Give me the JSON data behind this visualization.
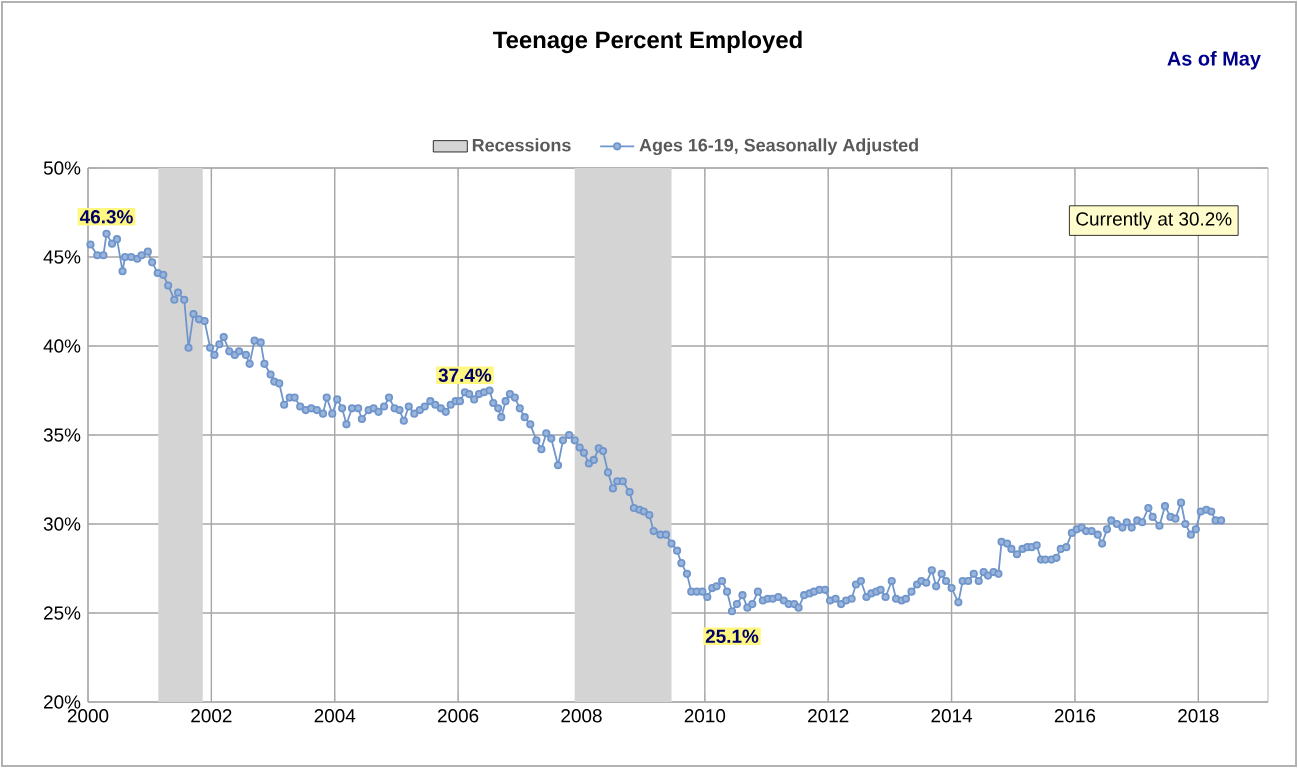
{
  "chart_data": {
    "type": "line",
    "title": "Teenage Percent Employed",
    "subtitle": "As of May",
    "x": [
      2000.04,
      2000.15,
      2000.25,
      2000.3,
      2000.39,
      2000.47,
      2000.56,
      2000.6,
      2000.7,
      2000.8,
      2000.87,
      2000.97,
      2001.04,
      2001.13,
      2001.22,
      2001.3,
      2001.4,
      2001.46,
      2001.56,
      2001.63,
      2001.71,
      2001.8,
      2001.89,
      2001.98,
      2002.05,
      2002.13,
      2002.2,
      2002.29,
      2002.38,
      2002.45,
      2002.56,
      2002.62,
      2002.7,
      2002.8,
      2002.86,
      2002.96,
      2003.02,
      2003.1,
      2003.18,
      2003.27,
      2003.35,
      2003.44,
      2003.53,
      2003.62,
      2003.71,
      2003.81,
      2003.87,
      2003.96,
      2004.04,
      2004.12,
      2004.19,
      2004.28,
      2004.38,
      2004.44,
      2004.55,
      2004.63,
      2004.71,
      2004.8,
      2004.88,
      2004.97,
      2005.05,
      2005.12,
      2005.2,
      2005.29,
      2005.38,
      2005.46,
      2005.55,
      2005.63,
      2005.72,
      2005.8,
      2005.88,
      2005.96,
      2006.03,
      2006.11,
      2006.18,
      2006.26,
      2006.34,
      2006.42,
      2006.51,
      2006.57,
      2006.65,
      2006.7,
      2006.77,
      2006.84,
      2006.92,
      2007.0,
      2007.08,
      2007.17,
      2007.27,
      2007.35,
      2007.43,
      2007.51,
      2007.62,
      2007.7,
      2007.8,
      2007.89,
      2007.97,
      2008.04,
      2008.12,
      2008.2,
      2008.28,
      2008.35,
      2008.43,
      2008.51,
      2008.58,
      2008.67,
      2008.78,
      2008.85,
      2008.94,
      2009.01,
      2009.1,
      2009.17,
      2009.28,
      2009.37,
      2009.46,
      2009.55,
      2009.62,
      2009.71,
      2009.78,
      2009.87,
      2009.96,
      2010.04,
      2010.12,
      2010.19,
      2010.28,
      2010.36,
      2010.44,
      2010.52,
      2010.61,
      2010.69,
      2010.77,
      2010.86,
      2010.94,
      2011.02,
      2011.1,
      2011.19,
      2011.28,
      2011.36,
      2011.45,
      2011.52,
      2011.61,
      2011.7,
      2011.77,
      2011.86,
      2011.95,
      2012.03,
      2012.12,
      2012.21,
      2012.29,
      2012.38,
      2012.45,
      2012.53,
      2012.62,
      2012.7,
      2012.78,
      2012.85,
      2012.93,
      2013.03,
      2013.1,
      2013.19,
      2013.26,
      2013.35,
      2013.44,
      2013.51,
      2013.59,
      2013.68,
      2013.75,
      2013.84,
      2013.91,
      2014.0,
      2014.11,
      2014.18,
      2014.27,
      2014.36,
      2014.44,
      2014.52,
      2014.59,
      2014.68,
      2014.76,
      2014.81,
      2014.9,
      2014.97,
      2015.06,
      2015.15,
      2015.23,
      2015.3,
      2015.38,
      2015.45,
      2015.52,
      2015.62,
      2015.7,
      2015.77,
      2015.86,
      2015.95,
      2016.03,
      2016.11,
      2016.18,
      2016.27,
      2016.37,
      2016.44,
      2016.52,
      2016.59,
      2016.68,
      2016.77,
      2016.84,
      2016.92,
      2017.01,
      2017.09,
      2017.19,
      2017.26,
      2017.37,
      2017.46,
      2017.55,
      2017.63,
      2017.72,
      2017.79,
      2017.88,
      2017.96,
      2018.04,
      2018.13,
      2018.21,
      2018.28,
      2018.37
    ],
    "series": [
      {
        "name": "Ages 16-19, Seasonally Adjusted",
        "color": "#6f95cb",
        "values": [
          45.7,
          45.1,
          45.1,
          46.3,
          45.75,
          46.0,
          44.2,
          45.0,
          45.0,
          44.9,
          45.1,
          45.3,
          44.7,
          44.1,
          44.0,
          43.4,
          42.6,
          43.0,
          42.6,
          39.9,
          41.8,
          41.5,
          41.4,
          39.9,
          39.5,
          40.1,
          40.5,
          39.7,
          39.5,
          39.7,
          39.5,
          39.0,
          40.3,
          40.2,
          39.0,
          38.4,
          38.0,
          37.9,
          36.7,
          37.1,
          37.1,
          36.6,
          36.4,
          36.5,
          36.4,
          36.2,
          37.1,
          36.2,
          37.0,
          36.5,
          35.6,
          36.5,
          36.5,
          35.9,
          36.4,
          36.5,
          36.3,
          36.6,
          37.1,
          36.5,
          36.4,
          35.8,
          36.6,
          36.2,
          36.4,
          36.6,
          36.9,
          36.7,
          36.5,
          36.3,
          36.7,
          36.9,
          36.9,
          37.4,
          37.3,
          37.0,
          37.3,
          37.4,
          37.5,
          36.8,
          36.5,
          36.0,
          36.9,
          37.3,
          37.1,
          36.5,
          36.0,
          35.6,
          34.7,
          34.2,
          35.1,
          34.8,
          33.3,
          34.7,
          35.0,
          34.7,
          34.3,
          34.0,
          33.4,
          33.6,
          34.25,
          34.1,
          32.9,
          32.0,
          32.4,
          32.4,
          31.8,
          30.9,
          30.8,
          30.7,
          30.5,
          29.6,
          29.4,
          29.4,
          28.9,
          28.5,
          27.8,
          27.2,
          26.2,
          26.2,
          26.2,
          25.9,
          26.4,
          26.5,
          26.8,
          26.2,
          25.1,
          25.5,
          26.0,
          25.3,
          25.5,
          26.2,
          25.7,
          25.8,
          25.8,
          25.9,
          25.7,
          25.5,
          25.5,
          25.3,
          26.0,
          26.1,
          26.2,
          26.3,
          26.3,
          25.7,
          25.8,
          25.5,
          25.7,
          25.8,
          26.6,
          26.8,
          25.9,
          26.1,
          26.2,
          26.3,
          25.9,
          26.8,
          25.8,
          25.7,
          25.8,
          26.2,
          26.6,
          26.8,
          26.7,
          27.4,
          26.5,
          27.2,
          26.8,
          26.4,
          25.6,
          26.8,
          26.8,
          27.2,
          26.8,
          27.3,
          27.1,
          27.3,
          27.2,
          29.0,
          28.9,
          28.6,
          28.3,
          28.6,
          28.7,
          28.7,
          28.8,
          28.0,
          28.0,
          28.0,
          28.1,
          28.6,
          28.7,
          29.5,
          29.7,
          29.8,
          29.6,
          29.6,
          29.4,
          28.9,
          29.7,
          30.2,
          30.0,
          29.8,
          30.1,
          29.8,
          30.2,
          30.1,
          30.9,
          30.4,
          29.9,
          31.0,
          30.4,
          30.3,
          31.2,
          30.0,
          29.4,
          29.7,
          30.7,
          30.8,
          30.7,
          30.2,
          30.2
        ]
      }
    ],
    "bands": [
      {
        "axis": "x",
        "from": 2001.14,
        "to": 2001.86,
        "label": "Recessions",
        "color": "#d4d4d4"
      },
      {
        "axis": "x",
        "from": 2007.89,
        "to": 2009.46,
        "color": "#d4d4d4"
      }
    ],
    "annotations": [
      {
        "text": "46.3%",
        "x": 2000.3,
        "y": 46.3
      },
      {
        "text": "37.4%",
        "x": 2006.11,
        "y": 37.4
      },
      {
        "text": "25.1%",
        "x": 2010.44,
        "y": 25.1
      },
      "Currently at 30.2%"
    ],
    "xlim": [
      2000,
      2019.13
    ],
    "xticks": [
      2000,
      2002,
      2004,
      2006,
      2008,
      2010,
      2012,
      2014,
      2016,
      2018
    ],
    "ylim": [
      20,
      50
    ],
    "yticks": [
      {
        "value": 20,
        "label": "20%"
      },
      {
        "value": 25,
        "label": "25%"
      },
      {
        "value": 30,
        "label": "30%"
      },
      {
        "value": 35,
        "label": "35%"
      },
      {
        "value": 40,
        "label": "40%"
      },
      {
        "value": 45,
        "label": "45%"
      },
      {
        "value": 50,
        "label": "50%"
      }
    ],
    "grid": true,
    "legend": "top",
    "marker": "circle",
    "line_style": "solid"
  }
}
